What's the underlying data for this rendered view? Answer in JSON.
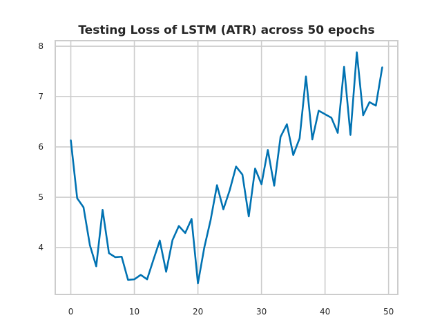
{
  "chart_data": {
    "type": "line",
    "title": "Testing Loss of LSTM (ATR) across 50 epochs",
    "xlabel": "",
    "ylabel": "",
    "xlim": [
      -2.45,
      51.45
    ],
    "ylim": [
      3.07,
      8.11
    ],
    "xticks": [
      0,
      10,
      20,
      30,
      40,
      50
    ],
    "yticks": [
      4,
      5,
      6,
      7,
      8
    ],
    "grid": true,
    "legend": "none",
    "series": [
      {
        "color": "#0072b2",
        "x": [
          0,
          1,
          2,
          3,
          4,
          5,
          6,
          7,
          8,
          9,
          10,
          11,
          12,
          13,
          14,
          15,
          16,
          17,
          18,
          19,
          20,
          21,
          22,
          23,
          24,
          25,
          26,
          27,
          28,
          29,
          30,
          31,
          32,
          33,
          34,
          35,
          36,
          37,
          38,
          39,
          40,
          41,
          42,
          43,
          44,
          45,
          46,
          47,
          48,
          49
        ],
        "values": [
          6.13,
          4.98,
          4.8,
          4.05,
          3.63,
          4.75,
          3.89,
          3.81,
          3.82,
          3.36,
          3.37,
          3.46,
          3.37,
          3.76,
          4.14,
          3.52,
          4.15,
          4.43,
          4.29,
          4.57,
          3.29,
          4.0,
          4.55,
          5.24,
          4.76,
          5.14,
          5.61,
          5.45,
          4.62,
          5.57,
          5.26,
          5.94,
          5.23,
          6.2,
          6.45,
          5.84,
          6.17,
          7.4,
          6.15,
          6.72,
          6.65,
          6.58,
          6.28,
          7.59,
          6.24,
          7.88,
          6.63,
          6.89,
          6.82,
          7.58
        ]
      }
    ]
  }
}
